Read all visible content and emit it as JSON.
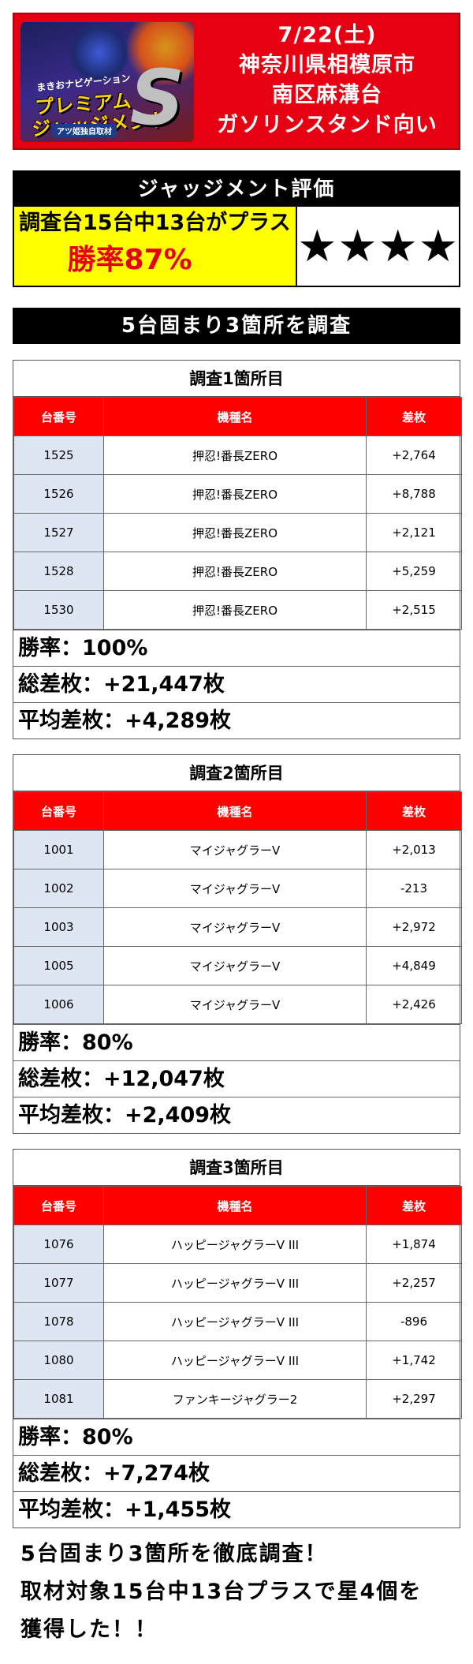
{
  "header": {
    "logo": {
      "small_text": "まきおナビゲーション",
      "title_line1": "プレミアム",
      "title_line2": "ジャッジメント",
      "s_mark": "S",
      "tag": "アツ姫独自取材"
    },
    "date": "7/22(土)",
    "location_line1": "神奈川県相模原市",
    "location_line2": "南区麻溝台",
    "location_line3": "ガソリンスタンド向い"
  },
  "judgement": {
    "title": "ジャッジメント評価",
    "summary": "調査台15台中13台がプラス",
    "win_rate": "勝率87%",
    "stars": "★★★★"
  },
  "section_title": "5台固まり3箇所を調査",
  "table_headers": {
    "number": "台番号",
    "model": "機種名",
    "diff": "差枚"
  },
  "surveys": [
    {
      "title": "調査1箇所目",
      "rows": [
        {
          "number": "1525",
          "model": "押忍!番長ZERO",
          "diff": "+2,764"
        },
        {
          "number": "1526",
          "model": "押忍!番長ZERO",
          "diff": "+8,788"
        },
        {
          "number": "1527",
          "model": "押忍!番長ZERO",
          "diff": "+2,121"
        },
        {
          "number": "1528",
          "model": "押忍!番長ZERO",
          "diff": "+5,259"
        },
        {
          "number": "1530",
          "model": "押忍!番長ZERO",
          "diff": "+2,515"
        }
      ],
      "win_rate": "勝率：100%",
      "total": "総差枚：+21,447枚",
      "average": "平均差枚：+4,289枚"
    },
    {
      "title": "調査2箇所目",
      "rows": [
        {
          "number": "1001",
          "model": "マイジャグラーV",
          "diff": "+2,013"
        },
        {
          "number": "1002",
          "model": "マイジャグラーV",
          "diff": "-213"
        },
        {
          "number": "1003",
          "model": "マイジャグラーV",
          "diff": "+2,972"
        },
        {
          "number": "1005",
          "model": "マイジャグラーV",
          "diff": "+4,849"
        },
        {
          "number": "1006",
          "model": "マイジャグラーV",
          "diff": "+2,426"
        }
      ],
      "win_rate": "勝率：80%",
      "total": "総差枚：+12,047枚",
      "average": "平均差枚：+2,409枚"
    },
    {
      "title": "調査3箇所目",
      "rows": [
        {
          "number": "1076",
          "model": "ハッピージャグラーV III",
          "diff": "+1,874"
        },
        {
          "number": "1077",
          "model": "ハッピージャグラーV III",
          "diff": "+2,257"
        },
        {
          "number": "1078",
          "model": "ハッピージャグラーV III",
          "diff": "-896"
        },
        {
          "number": "1080",
          "model": "ハッピージャグラーV III",
          "diff": "+1,742"
        },
        {
          "number": "1081",
          "model": "ファンキージャグラー2",
          "diff": "+2,297"
        }
      ],
      "win_rate": "勝率：80%",
      "total": "総差枚：+7,274枚",
      "average": "平均差枚：+1,455枚"
    }
  ],
  "footer": {
    "line1": "5台固まり3箇所を徹底調査！",
    "line2": "取材対象15台中13台プラスで星4個を",
    "line3": "獲得した！！"
  },
  "colors": {
    "header_red": "#e60012",
    "table_header_red": "#ff0000",
    "judge_yellow": "#ffff00",
    "number_cell_blue": "#dfe6f3"
  }
}
